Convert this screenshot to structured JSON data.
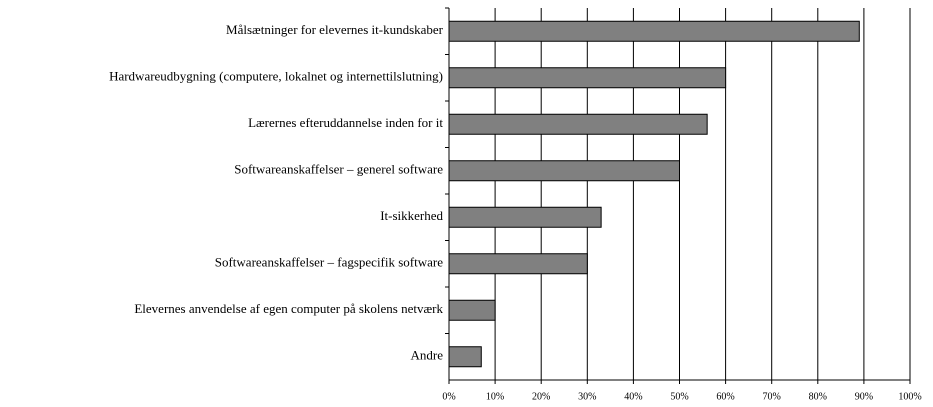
{
  "chart_data": {
    "type": "bar",
    "orientation": "horizontal",
    "categories": [
      "Målsætninger for elevernes it-kundskaber",
      "Hardwareudbygning (computere, lokalnet og internettilslutning)",
      "Lærernes efteruddannelse inden for it",
      "Softwareanskaffelser – generel software",
      "It-sikkerhed",
      "Softwareanskaffelser – fagspecifik software",
      "Elevernes anvendelse af egen computer på skolens netværk",
      "Andre"
    ],
    "values": [
      89,
      60,
      56,
      50,
      33,
      30,
      10,
      7
    ],
    "color": "#808080",
    "xlim": [
      0,
      100
    ],
    "xticks": [
      {
        "value": 0,
        "label": "0%"
      },
      {
        "value": 10,
        "label": "10%"
      },
      {
        "value": 20,
        "label": "20%"
      },
      {
        "value": 30,
        "label": "30%"
      },
      {
        "value": 40,
        "label": "40%"
      },
      {
        "value": 50,
        "label": "50%"
      },
      {
        "value": 60,
        "label": "60%"
      },
      {
        "value": 70,
        "label": "70%"
      },
      {
        "value": 80,
        "label": "80%"
      },
      {
        "value": 90,
        "label": "90%"
      },
      {
        "value": 100,
        "label": "100%"
      }
    ],
    "grid": true
  }
}
